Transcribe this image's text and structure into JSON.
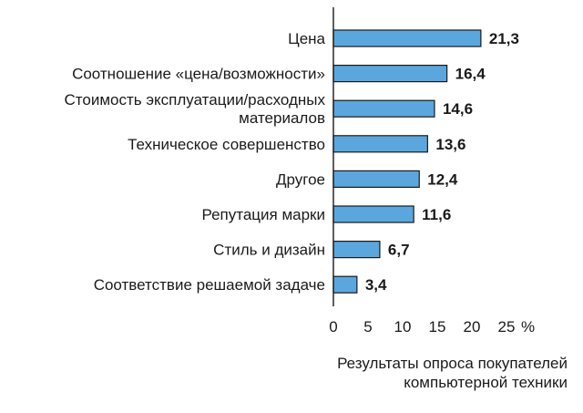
{
  "chart_data": {
    "type": "bar",
    "orientation": "horizontal",
    "categories": [
      [
        "Цена"
      ],
      [
        "Соотношение «цена/возможности»"
      ],
      [
        "Стоимость эксплуатации/расходных",
        "материалов"
      ],
      [
        "Техническое совершенство"
      ],
      [
        "Другое"
      ],
      [
        "Репутация марки"
      ],
      [
        "Стиль и дизайн"
      ],
      [
        "Соответствие решаемой задаче"
      ]
    ],
    "values": [
      21.3,
      16.4,
      14.6,
      13.6,
      12.4,
      11.6,
      6.7,
      3.4
    ],
    "value_labels": [
      "21,3",
      "16,4",
      "14,6",
      "13,6",
      "12,4",
      "11,6",
      "6,7",
      "3,4"
    ],
    "xlim": [
      0,
      25
    ],
    "xticks": [
      0,
      5,
      10,
      15,
      20,
      25
    ],
    "xtick_labels": [
      "0",
      "5",
      "10",
      "15",
      "20",
      "25"
    ],
    "x_unit": "%",
    "caption": [
      "Результаты опроса покупателей",
      "компьютерной техники"
    ],
    "bar_color": "#5BA7DD",
    "grid": false,
    "legend": "none"
  }
}
